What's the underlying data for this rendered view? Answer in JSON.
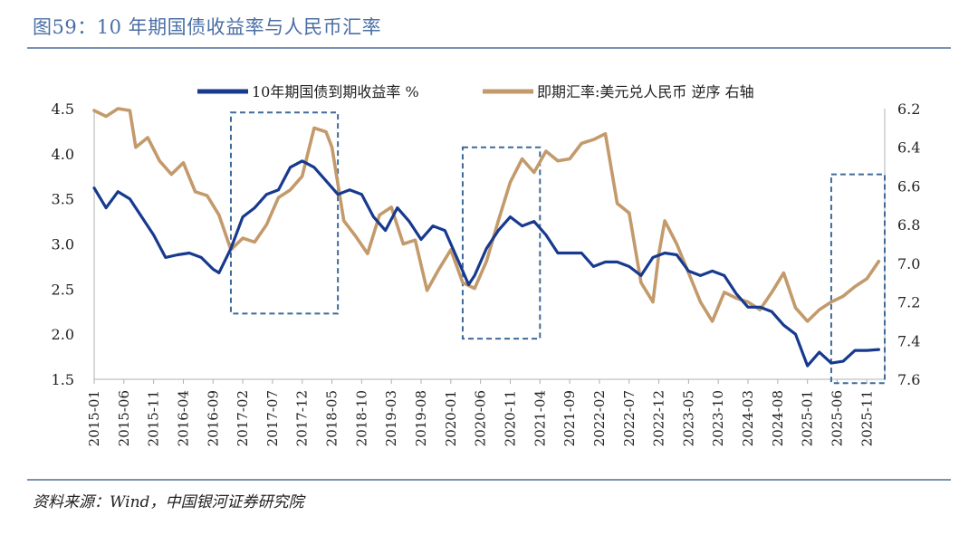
{
  "figure": {
    "title": "图59：10 年期国债收益率与人民币汇率",
    "source": "资料来源：Wind，中国银河证券研究院"
  },
  "colors": {
    "yield": "#173a8f",
    "fx": "#c39a6b",
    "box": "#3d6a99",
    "rule": "#7b91b3",
    "title": "#4a6fa5"
  },
  "chart_data": {
    "type": "line",
    "title": "",
    "legend_position": "top",
    "grid": false,
    "x_ticks": [
      "2015-01",
      "2015-06",
      "2015-11",
      "2016-04",
      "2016-09",
      "2017-02",
      "2017-07",
      "2017-12",
      "2018-05",
      "2018-10",
      "2019-03",
      "2019-08",
      "2020-01",
      "2020-06",
      "2020-11",
      "2021-04",
      "2021-09",
      "2022-02",
      "2022-07",
      "2022-12",
      "2023-05",
      "2023-10",
      "2024-03",
      "2024-08",
      "2025-01",
      "2025-06",
      "2025-11"
    ],
    "x_range": [
      "2015-01",
      "2026-02"
    ],
    "y_left": {
      "range": [
        1.5,
        4.5
      ],
      "ticks": [
        "4.5",
        "4.0",
        "3.5",
        "3.0",
        "2.5",
        "2.0",
        "1.5"
      ]
    },
    "y_right": {
      "range": [
        6.2,
        7.6
      ],
      "inverted": true,
      "ticks": [
        "6.2",
        "6.4",
        "6.6",
        "6.8",
        "7.0",
        "7.2",
        "7.4",
        "7.6"
      ]
    },
    "series": [
      {
        "name": "10年期国债到期收益率 %",
        "axis": "left",
        "points": [
          [
            "2015-01",
            3.62
          ],
          [
            "2015-03",
            3.4
          ],
          [
            "2015-05",
            3.58
          ],
          [
            "2015-07",
            3.5
          ],
          [
            "2015-09",
            3.3
          ],
          [
            "2015-11",
            3.1
          ],
          [
            "2016-01",
            2.85
          ],
          [
            "2016-03",
            2.88
          ],
          [
            "2016-05",
            2.9
          ],
          [
            "2016-07",
            2.85
          ],
          [
            "2016-09",
            2.72
          ],
          [
            "2016-10",
            2.68
          ],
          [
            "2016-12",
            2.95
          ],
          [
            "2017-02",
            3.3
          ],
          [
            "2017-04",
            3.4
          ],
          [
            "2017-06",
            3.55
          ],
          [
            "2017-08",
            3.6
          ],
          [
            "2017-10",
            3.85
          ],
          [
            "2017-12",
            3.92
          ],
          [
            "2018-02",
            3.85
          ],
          [
            "2018-04",
            3.7
          ],
          [
            "2018-06",
            3.55
          ],
          [
            "2018-08",
            3.6
          ],
          [
            "2018-10",
            3.55
          ],
          [
            "2018-12",
            3.3
          ],
          [
            "2019-02",
            3.15
          ],
          [
            "2019-04",
            3.4
          ],
          [
            "2019-06",
            3.25
          ],
          [
            "2019-08",
            3.05
          ],
          [
            "2019-10",
            3.2
          ],
          [
            "2019-12",
            3.15
          ],
          [
            "2020-02",
            2.85
          ],
          [
            "2020-04",
            2.55
          ],
          [
            "2020-05",
            2.65
          ],
          [
            "2020-07",
            2.95
          ],
          [
            "2020-09",
            3.15
          ],
          [
            "2020-11",
            3.3
          ],
          [
            "2021-01",
            3.2
          ],
          [
            "2021-03",
            3.25
          ],
          [
            "2021-05",
            3.1
          ],
          [
            "2021-07",
            2.9
          ],
          [
            "2021-09",
            2.9
          ],
          [
            "2021-11",
            2.9
          ],
          [
            "2022-01",
            2.75
          ],
          [
            "2022-03",
            2.8
          ],
          [
            "2022-05",
            2.8
          ],
          [
            "2022-07",
            2.75
          ],
          [
            "2022-09",
            2.65
          ],
          [
            "2022-11",
            2.85
          ],
          [
            "2023-01",
            2.9
          ],
          [
            "2023-03",
            2.88
          ],
          [
            "2023-05",
            2.7
          ],
          [
            "2023-07",
            2.65
          ],
          [
            "2023-09",
            2.7
          ],
          [
            "2023-11",
            2.65
          ],
          [
            "2024-01",
            2.45
          ],
          [
            "2024-03",
            2.3
          ],
          [
            "2024-05",
            2.3
          ],
          [
            "2024-07",
            2.25
          ],
          [
            "2024-09",
            2.1
          ],
          [
            "2024-11",
            2.0
          ],
          [
            "2025-01",
            1.65
          ],
          [
            "2025-03",
            1.8
          ],
          [
            "2025-05",
            1.68
          ],
          [
            "2025-07",
            1.7
          ],
          [
            "2025-09",
            1.82
          ],
          [
            "2025-11",
            1.82
          ],
          [
            "2026-01",
            1.83
          ]
        ]
      },
      {
        "name": "即期汇率:美元兑人民币 逆序 右轴",
        "axis": "right",
        "points": [
          [
            "2015-01",
            6.21
          ],
          [
            "2015-03",
            6.24
          ],
          [
            "2015-05",
            6.2
          ],
          [
            "2015-07",
            6.21
          ],
          [
            "2015-08",
            6.4
          ],
          [
            "2015-10",
            6.35
          ],
          [
            "2015-12",
            6.47
          ],
          [
            "2016-02",
            6.54
          ],
          [
            "2016-04",
            6.48
          ],
          [
            "2016-06",
            6.63
          ],
          [
            "2016-08",
            6.65
          ],
          [
            "2016-10",
            6.75
          ],
          [
            "2016-12",
            6.93
          ],
          [
            "2017-02",
            6.87
          ],
          [
            "2017-04",
            6.89
          ],
          [
            "2017-06",
            6.8
          ],
          [
            "2017-08",
            6.66
          ],
          [
            "2017-10",
            6.62
          ],
          [
            "2017-12",
            6.55
          ],
          [
            "2018-02",
            6.3
          ],
          [
            "2018-04",
            6.32
          ],
          [
            "2018-05",
            6.4
          ],
          [
            "2018-07",
            6.78
          ],
          [
            "2018-09",
            6.86
          ],
          [
            "2018-11",
            6.95
          ],
          [
            "2019-01",
            6.75
          ],
          [
            "2019-03",
            6.71
          ],
          [
            "2019-05",
            6.9
          ],
          [
            "2019-07",
            6.88
          ],
          [
            "2019-09",
            7.14
          ],
          [
            "2019-11",
            7.03
          ],
          [
            "2020-01",
            6.93
          ],
          [
            "2020-03",
            7.1
          ],
          [
            "2020-05",
            7.13
          ],
          [
            "2020-07",
            6.99
          ],
          [
            "2020-09",
            6.78
          ],
          [
            "2020-11",
            6.58
          ],
          [
            "2021-01",
            6.46
          ],
          [
            "2021-03",
            6.53
          ],
          [
            "2021-05",
            6.42
          ],
          [
            "2021-07",
            6.47
          ],
          [
            "2021-09",
            6.46
          ],
          [
            "2021-11",
            6.38
          ],
          [
            "2022-01",
            6.36
          ],
          [
            "2022-03",
            6.33
          ],
          [
            "2022-05",
            6.69
          ],
          [
            "2022-07",
            6.74
          ],
          [
            "2022-09",
            7.1
          ],
          [
            "2022-11",
            7.2
          ],
          [
            "2022-12",
            6.95
          ],
          [
            "2023-01",
            6.78
          ],
          [
            "2023-03",
            6.9
          ],
          [
            "2023-05",
            7.05
          ],
          [
            "2023-07",
            7.2
          ],
          [
            "2023-09",
            7.3
          ],
          [
            "2023-11",
            7.15
          ],
          [
            "2024-01",
            7.18
          ],
          [
            "2024-03",
            7.2
          ],
          [
            "2024-05",
            7.24
          ],
          [
            "2024-07",
            7.15
          ],
          [
            "2024-09",
            7.05
          ],
          [
            "2024-11",
            7.23
          ],
          [
            "2025-01",
            7.3
          ],
          [
            "2025-03",
            7.24
          ],
          [
            "2025-05",
            7.2
          ],
          [
            "2025-07",
            7.17
          ],
          [
            "2025-09",
            7.12
          ],
          [
            "2025-11",
            7.08
          ],
          [
            "2026-01",
            6.99
          ]
        ]
      }
    ],
    "highlight_boxes": [
      {
        "x": [
          "2016-12",
          "2018-06"
        ],
        "y_right": [
          6.22,
          7.26
        ]
      },
      {
        "x": [
          "2020-03",
          "2021-04"
        ],
        "y_right": [
          6.4,
          7.39
        ]
      },
      {
        "x": [
          "2025-05",
          "2026-02"
        ],
        "y_right": [
          6.54,
          7.62
        ]
      }
    ]
  }
}
